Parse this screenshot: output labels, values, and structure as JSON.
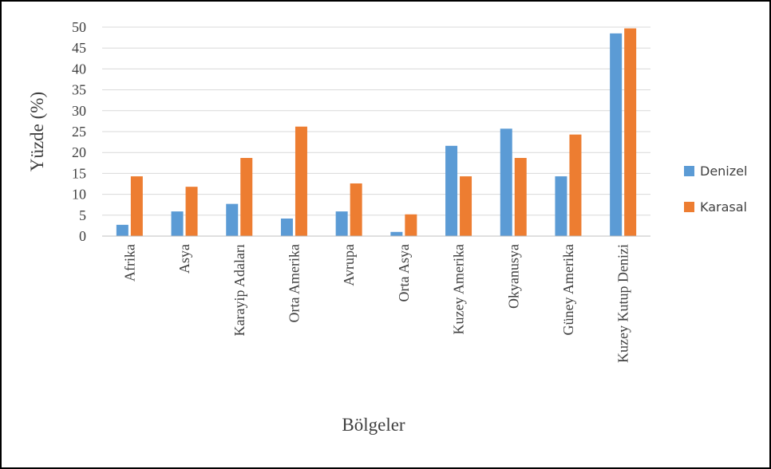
{
  "chart_data": {
    "type": "bar",
    "title": "",
    "xlabel": "Bölgeler",
    "ylabel": "Yüzde (%)",
    "ylim": [
      0,
      50
    ],
    "yticks": [
      0,
      5,
      10,
      15,
      20,
      25,
      30,
      35,
      40,
      45,
      50
    ],
    "grid": true,
    "legend_position": "right",
    "categories": [
      "Afrika",
      "Asya",
      "Karayip Adaları",
      "Orta Amerika",
      "Avrupa",
      "Orta Asya",
      "Kuzey Amerika",
      "Okyanusya",
      "Güney Amerika",
      "Kuzey Kutup Denizi"
    ],
    "series": [
      {
        "name": "Denizel",
        "color": "#5B9BD5",
        "values": [
          2.7,
          5.9,
          7.7,
          4.2,
          5.9,
          1.0,
          21.6,
          25.7,
          14.3,
          48.5
        ]
      },
      {
        "name": "Karasal",
        "color": "#ED7D31",
        "values": [
          14.3,
          11.8,
          18.7,
          26.2,
          12.6,
          5.2,
          14.3,
          18.7,
          24.3,
          49.7
        ]
      }
    ]
  }
}
